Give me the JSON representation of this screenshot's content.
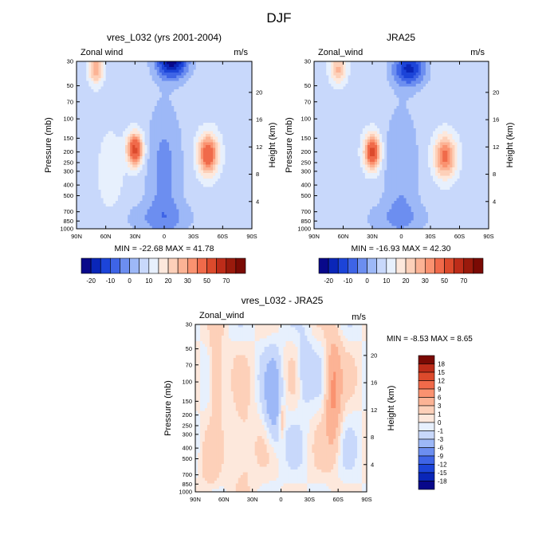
{
  "page": {
    "title": "DJF"
  },
  "chart_data": [
    {
      "id": "model",
      "type": "heatmap",
      "title": "vres_L032 (yrs 2001-2004)",
      "left_label": "Zonal wind",
      "right_label": "m/s",
      "ylabel": "Pressure (mb)",
      "ylabel_right": "Height (km)",
      "x_ticks": [
        "90N",
        "60N",
        "30N",
        "0",
        "30S",
        "60S",
        "90S"
      ],
      "y_ticks": [
        "30",
        "50",
        "70",
        "100",
        "150",
        "200",
        "250",
        "300",
        "400",
        "500",
        "700",
        "850",
        "1000"
      ],
      "y_tick_values": [
        30,
        50,
        70,
        100,
        150,
        200,
        250,
        300,
        400,
        500,
        700,
        850,
        1000
      ],
      "height_ticks": [
        "20",
        "16",
        "12",
        "8",
        "4"
      ],
      "height_tick_values": [
        20,
        16,
        12,
        8,
        4
      ],
      "xlim": [
        90,
        -90
      ],
      "ylim": [
        30,
        1000
      ],
      "min_max_text": "MIN = -22.68  MAX =  41.78",
      "features": [
        {
          "lat": 30,
          "p": 190,
          "amp": 40,
          "wlat": 8,
          "wlog": 0.33
        },
        {
          "lat": -45,
          "p": 210,
          "amp": 36,
          "wlat": 10,
          "wlog": 0.4
        },
        {
          "lat": 70,
          "p": 35,
          "amp": 22,
          "wlat": 7,
          "wlog": 0.3
        },
        {
          "lat": -8,
          "p": 30,
          "amp": -30,
          "wlat": 16,
          "wlog": 0.35
        },
        {
          "lat": 5,
          "p": 800,
          "amp": -7,
          "wlat": 35,
          "wlog": 0.35
        },
        {
          "lat": 55,
          "p": 300,
          "amp": 6,
          "wlat": 12,
          "wlog": 0.8
        }
      ],
      "base": 3,
      "tropical_dip": -10
    },
    {
      "id": "reanalysis",
      "type": "heatmap",
      "title": "JRA25",
      "left_label": "Zonal_wind",
      "right_label": "m/s",
      "ylabel": "Pressure (mb)",
      "ylabel_right": "Height (km)",
      "x_ticks": [
        "90N",
        "60N",
        "30N",
        "0",
        "30S",
        "60S",
        "90S"
      ],
      "y_ticks": [
        "30",
        "50",
        "70",
        "100",
        "150",
        "200",
        "250",
        "300",
        "400",
        "500",
        "700",
        "850",
        "1000"
      ],
      "y_tick_values": [
        30,
        50,
        70,
        100,
        150,
        200,
        250,
        300,
        400,
        500,
        700,
        850,
        1000
      ],
      "height_ticks": [
        "20",
        "16",
        "12",
        "8",
        "4"
      ],
      "height_tick_values": [
        20,
        16,
        12,
        8,
        4
      ],
      "xlim": [
        90,
        -90
      ],
      "ylim": [
        30,
        1000
      ],
      "min_max_text": "MIN = -16.93  MAX =  42.30",
      "features": [
        {
          "lat": 30,
          "p": 200,
          "amp": 40,
          "wlat": 8,
          "wlog": 0.35
        },
        {
          "lat": -45,
          "p": 220,
          "amp": 30,
          "wlat": 11,
          "wlog": 0.42
        },
        {
          "lat": 65,
          "p": 35,
          "amp": 18,
          "wlat": 8,
          "wlog": 0.3
        },
        {
          "lat": -8,
          "p": 35,
          "amp": -24,
          "wlat": 16,
          "wlog": 0.35
        },
        {
          "lat": 5,
          "p": 800,
          "amp": -6,
          "wlat": 35,
          "wlog": 0.35
        }
      ],
      "base": 3,
      "tropical_dip": -8
    },
    {
      "id": "difference",
      "type": "heatmap",
      "title": "vres_L032 - JRA25",
      "left_label": "Zonal_wind",
      "right_label": "m/s",
      "ylabel": "Pressure (mb)",
      "ylabel_right": "Height (km)",
      "x_ticks": [
        "90N",
        "60N",
        "30N",
        "0",
        "30S",
        "60S",
        "90S"
      ],
      "y_ticks": [
        "30",
        "50",
        "70",
        "100",
        "150",
        "200",
        "250",
        "300",
        "400",
        "500",
        "700",
        "850",
        "1000"
      ],
      "y_tick_values": [
        30,
        50,
        70,
        100,
        150,
        200,
        250,
        300,
        400,
        500,
        700,
        850,
        1000
      ],
      "height_ticks": [
        "20",
        "16",
        "12",
        "8",
        "4"
      ],
      "height_tick_values": [
        20,
        16,
        12,
        8,
        4
      ],
      "xlim": [
        90,
        -90
      ],
      "ylim": [
        30,
        1000
      ],
      "min_max_text": "MIN =  -8.53  MAX =   8.65",
      "features": [
        {
          "lat": 68,
          "p": 80,
          "amp": 4,
          "wlat": 7,
          "wlog": 0.9
        },
        {
          "lat": 40,
          "p": 400,
          "amp": 2.5,
          "wlat": 12,
          "wlog": 0.9
        },
        {
          "lat": 8,
          "p": 150,
          "amp": -5,
          "wlat": 9,
          "wlog": 0.9
        },
        {
          "lat": -1,
          "p": 220,
          "amp": 3.5,
          "wlat": 3,
          "wlog": 0.35
        },
        {
          "lat": -55,
          "p": 120,
          "amp": 7,
          "wlat": 8,
          "wlog": 1.1
        },
        {
          "lat": -25,
          "p": 80,
          "amp": -3,
          "wlat": 8,
          "wlog": 0.7
        },
        {
          "lat": 75,
          "p": 600,
          "amp": 1.5,
          "wlat": 10,
          "wlog": 0.5
        }
      ],
      "base": 0,
      "tropical_dip": 0
    }
  ],
  "colorbars": {
    "horizontal": {
      "labels": [
        "-20",
        "-10",
        "0",
        "10",
        "20",
        "30",
        "50",
        "70"
      ],
      "levels": [
        -25,
        -20,
        -15,
        -10,
        -5,
        0,
        5,
        10,
        15,
        20,
        25,
        30,
        40,
        50,
        60,
        70
      ],
      "colors": [
        "#08088a",
        "#0a26b8",
        "#1c44d8",
        "#3e64e6",
        "#6c8ef0",
        "#9db8f7",
        "#c8d8fb",
        "#e7f0fd",
        "#fde8dc",
        "#fdd0b9",
        "#fcb395",
        "#fa9270",
        "#f06a4a",
        "#dc4a2c",
        "#bd2c19",
        "#9a1a0c",
        "#7a0a04"
      ]
    },
    "vertical": {
      "labels": [
        "18",
        "15",
        "12",
        "9",
        "6",
        "3",
        "1",
        "0",
        "-1",
        "-3",
        "-6",
        "-9",
        "-12",
        "-15",
        "-18"
      ],
      "levels": [
        -18,
        -15,
        -12,
        -9,
        -6,
        -3,
        -1,
        0,
        1,
        3,
        6,
        9,
        12,
        15,
        18
      ],
      "colors": [
        "#08088a",
        "#0a26b8",
        "#1c44d8",
        "#3e64e6",
        "#6c8ef0",
        "#9db8f7",
        "#c8d8fb",
        "#e7f0fd",
        "#fde8dc",
        "#fdd0b9",
        "#fcb395",
        "#fa9270",
        "#f06a4a",
        "#dc4a2c",
        "#bd2c19",
        "#7a0a04"
      ]
    }
  }
}
